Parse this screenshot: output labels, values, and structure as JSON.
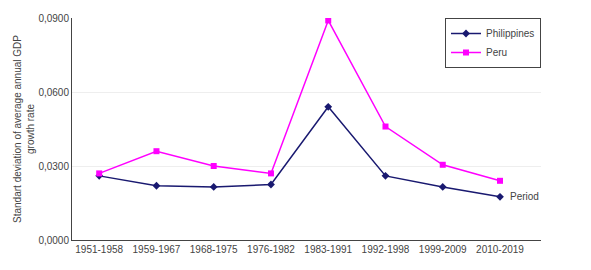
{
  "chart_data": {
    "type": "line",
    "categories": [
      "1951-1958",
      "1959-1967",
      "1968-1975",
      "1976-1982",
      "1983-1991",
      "1992-1998",
      "1999-2009",
      "2010-2019"
    ],
    "series": [
      {
        "name": "Philippines",
        "color": "#191970",
        "marker": "diamond",
        "values": [
          0.026,
          0.022,
          0.0215,
          0.0225,
          0.054,
          0.026,
          0.0215,
          0.0175
        ]
      },
      {
        "name": "Peru",
        "color": "#FF00FF",
        "marker": "square",
        "values": [
          0.027,
          0.036,
          0.03,
          0.027,
          0.089,
          0.046,
          0.0305,
          0.024
        ]
      }
    ],
    "ylabel": "Standart deviation of average annual GDP\ngrowth rate",
    "annotation": "Period",
    "ylim": [
      0.0,
      0.09
    ],
    "yticks": [
      {
        "value": 0.0,
        "label": "0,0000"
      },
      {
        "value": 0.03,
        "label": "0,0300"
      },
      {
        "value": 0.06,
        "label": "0,0600"
      },
      {
        "value": 0.09,
        "label": "0,0900"
      }
    ],
    "grid": true,
    "legend": "upper right"
  }
}
